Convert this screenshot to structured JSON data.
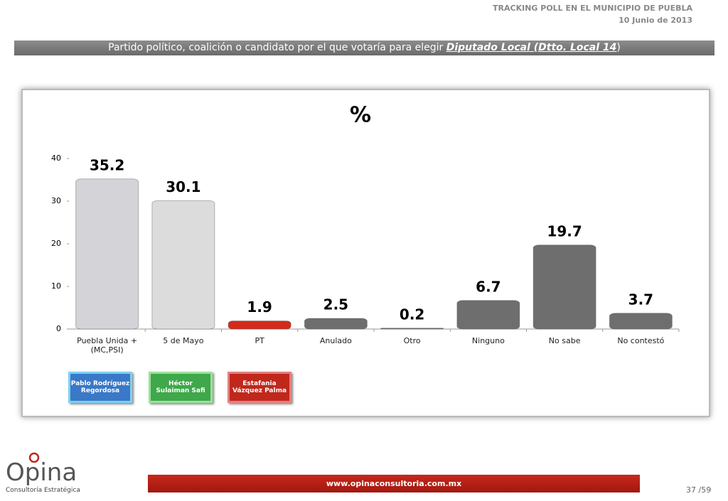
{
  "header": {
    "line1": "TRACKING POLL EN EL MUNICIPIO DE PUEBLA",
    "line2": "10 Junio de 2013",
    "subtitle": [
      "Partido político, coalición  o candidato por el que votaría para  elegir ",
      "Diputado Local (Dtto. Local 14",
      ")"
    ]
  },
  "chart_data": {
    "type": "bar",
    "title": "%",
    "categories": [
      "Puebla Unida + (MC,PSI)",
      "5 de Mayo",
      "PT",
      "Anulado",
      "Otro",
      "Ninguno",
      "No sabe",
      "No contestó"
    ],
    "values": [
      35.2,
      30.1,
      1.9,
      2.5,
      0.2,
      6.7,
      19.7,
      3.7
    ],
    "colors": [
      "#d4d4d8",
      "#dcdcdc",
      "#d42a1c",
      "#6e6e6e",
      "#6e6e6e",
      "#6e6e6e",
      "#6e6e6e",
      "#6e6e6e"
    ],
    "ylim": [
      0,
      40
    ],
    "yticks": [
      0,
      10,
      20,
      30,
      40
    ]
  },
  "candidates": [
    {
      "name": "Pablo Rodríguez Regordosa",
      "color": "#3a78c8",
      "border": "#7fd0f0"
    },
    {
      "name": "Héctor Sulaiman Safi",
      "color": "#3ea84a",
      "border": "#9be29b"
    },
    {
      "name": "Estafania Vázquez  Palma",
      "color": "#c0281c",
      "border": "#e58080"
    }
  ],
  "footer": {
    "url": "www.opinaconsultoria.com.mx",
    "page": "37 /59",
    "logo": "Opina",
    "logo_sub": "Consultoría Estratégica"
  }
}
